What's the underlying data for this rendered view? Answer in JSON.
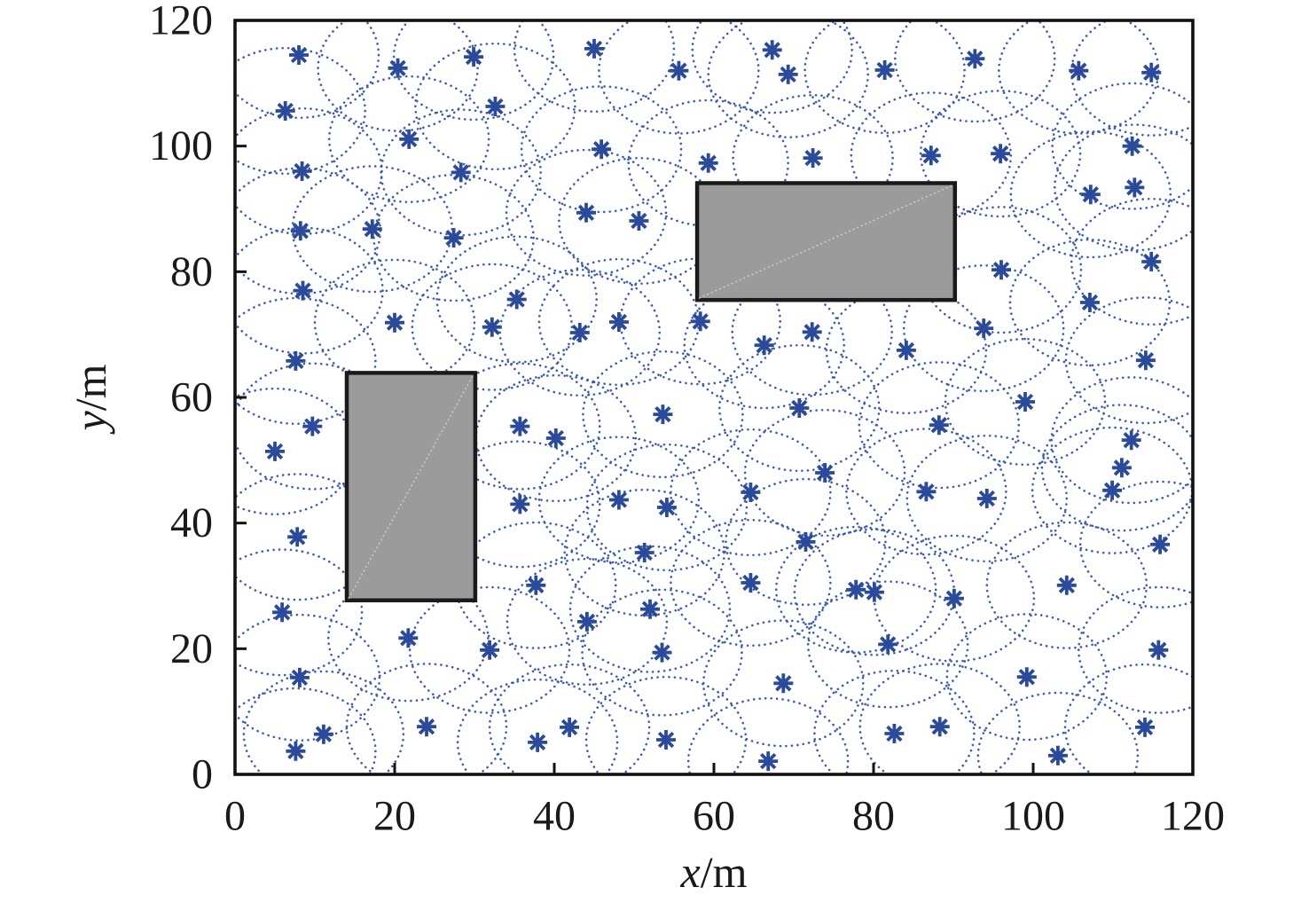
{
  "figure": {
    "description": "Wireless sensor network node deployment with sensing-range circles and two rectangular obstacles",
    "xlabel": "x/m",
    "ylabel": "y/m"
  },
  "chart_data": {
    "type": "scatter",
    "title": "",
    "xlabel": "x/m",
    "ylabel": "y/m",
    "xlim": [
      0,
      120
    ],
    "ylim": [
      0,
      120
    ],
    "xticks": [
      0,
      20,
      40,
      60,
      80,
      100,
      120
    ],
    "yticks": [
      0,
      20,
      40,
      60,
      80,
      100,
      120
    ],
    "grid": false,
    "legend": "none",
    "marker_style": "asterisk",
    "sensing_radius_m": 10,
    "colors": {
      "marker": "#2b4a99",
      "sensing_circle": "#3d5dac",
      "obstacle_fill": "#9b9b9b",
      "obstacle_border": "#1a1a1a",
      "obstacle_diagonal": "#cdd2d6",
      "axis": "#111111"
    },
    "nodes": [
      [
        8.0,
        114.5
      ],
      [
        20.4,
        112.4
      ],
      [
        29.9,
        114.2
      ],
      [
        6.3,
        105.6
      ],
      [
        32.6,
        106.3
      ],
      [
        21.8,
        101.1
      ],
      [
        8.4,
        96.0
      ],
      [
        28.3,
        95.8
      ],
      [
        8.2,
        86.5
      ],
      [
        17.2,
        86.8
      ],
      [
        27.4,
        85.4
      ],
      [
        45.0,
        115.5
      ],
      [
        55.6,
        112.0
      ],
      [
        67.3,
        115.3
      ],
      [
        69.3,
        111.4
      ],
      [
        45.9,
        99.5
      ],
      [
        59.3,
        97.3
      ],
      [
        72.4,
        98.1
      ],
      [
        44.0,
        89.4
      ],
      [
        50.6,
        88.1
      ],
      [
        81.4,
        112.1
      ],
      [
        92.7,
        113.9
      ],
      [
        105.7,
        112.0
      ],
      [
        114.8,
        111.7
      ],
      [
        87.2,
        98.5
      ],
      [
        95.9,
        98.8
      ],
      [
        112.4,
        100.0
      ],
      [
        107.2,
        92.3
      ],
      [
        112.7,
        93.4
      ],
      [
        114.8,
        81.6
      ],
      [
        8.5,
        77.0
      ],
      [
        20.0,
        71.9
      ],
      [
        35.3,
        75.6
      ],
      [
        32.2,
        71.2
      ],
      [
        7.6,
        65.8
      ],
      [
        9.7,
        55.4
      ],
      [
        5.0,
        51.4
      ],
      [
        35.7,
        55.4
      ],
      [
        35.7,
        43.0
      ],
      [
        43.2,
        70.3
      ],
      [
        48.1,
        72.0
      ],
      [
        58.3,
        72.1
      ],
      [
        66.3,
        68.3
      ],
      [
        72.3,
        70.4
      ],
      [
        53.6,
        57.3
      ],
      [
        70.7,
        58.3
      ],
      [
        40.2,
        53.5
      ],
      [
        73.9,
        48.0
      ],
      [
        64.6,
        44.9
      ],
      [
        48.1,
        43.7
      ],
      [
        54.1,
        42.5
      ],
      [
        96.0,
        80.3
      ],
      [
        107.1,
        75.1
      ],
      [
        93.8,
        71.0
      ],
      [
        84.1,
        67.5
      ],
      [
        114.1,
        65.9
      ],
      [
        99.0,
        59.3
      ],
      [
        88.2,
        55.6
      ],
      [
        112.3,
        53.2
      ],
      [
        111.1,
        48.8
      ],
      [
        109.9,
        45.2
      ],
      [
        86.6,
        45.0
      ],
      [
        94.2,
        43.9
      ],
      [
        7.8,
        37.8
      ],
      [
        37.7,
        30.1
      ],
      [
        5.9,
        25.8
      ],
      [
        21.7,
        21.7
      ],
      [
        31.9,
        19.8
      ],
      [
        8.1,
        15.4
      ],
      [
        11.1,
        6.4
      ],
      [
        7.6,
        3.7
      ],
      [
        24.0,
        7.6
      ],
      [
        37.9,
        5.1
      ],
      [
        51.3,
        35.3
      ],
      [
        64.6,
        30.5
      ],
      [
        71.5,
        37.0
      ],
      [
        44.1,
        24.3
      ],
      [
        52.0,
        26.3
      ],
      [
        53.5,
        19.4
      ],
      [
        68.7,
        14.5
      ],
      [
        41.9,
        7.5
      ],
      [
        54.0,
        5.5
      ],
      [
        66.8,
        2.1
      ],
      [
        77.8,
        29.4
      ],
      [
        115.9,
        36.6
      ],
      [
        80.1,
        29.0
      ],
      [
        90.1,
        28.0
      ],
      [
        81.8,
        20.7
      ],
      [
        104.2,
        30.1
      ],
      [
        115.7,
        19.8
      ],
      [
        99.2,
        15.5
      ],
      [
        82.6,
        6.5
      ],
      [
        88.3,
        7.6
      ],
      [
        114.0,
        7.5
      ],
      [
        103.1,
        3.0
      ]
    ],
    "obstacles": [
      {
        "x_range": [
          14.0,
          30.1
        ],
        "y_range": [
          27.7,
          63.9
        ]
      },
      {
        "x_range": [
          57.9,
          90.2
        ],
        "y_range": [
          75.5,
          94.1
        ]
      }
    ]
  }
}
